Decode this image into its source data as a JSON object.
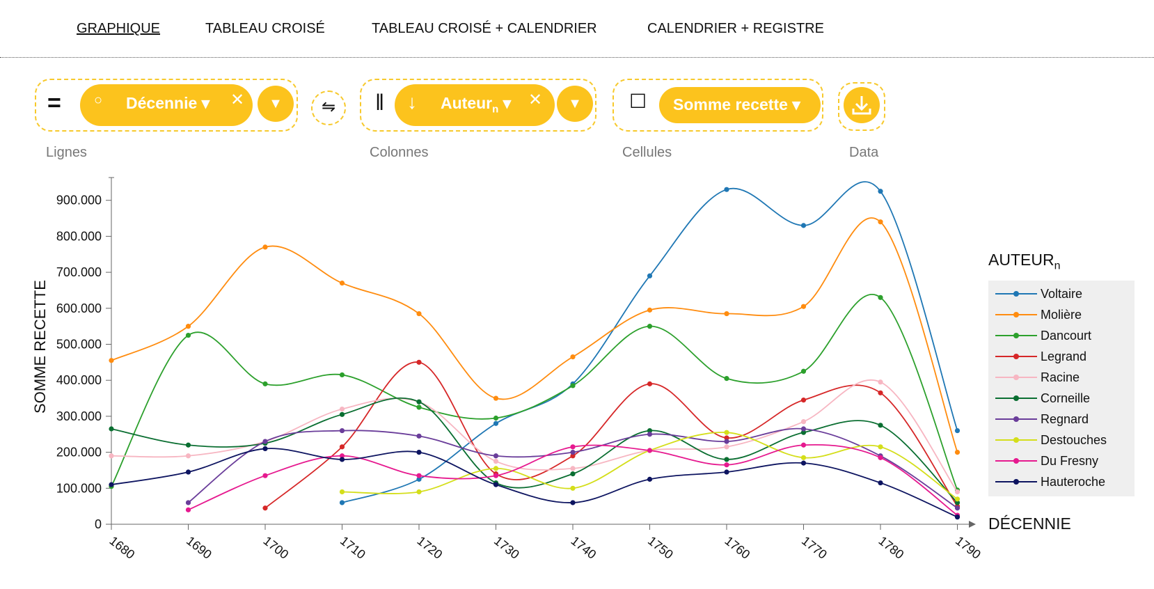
{
  "nav": {
    "tabs": [
      {
        "label": "GRAPHIQUE",
        "active": true
      },
      {
        "label": "TABLEAU CROISÉ",
        "active": false
      },
      {
        "label": "TABLEAU CROISÉ + CALENDRIER",
        "active": false
      },
      {
        "label": "CALENDRIER + REGISTRE",
        "active": false
      }
    ]
  },
  "controls": {
    "rows": {
      "label": "Lignes",
      "pill": "Décennie ▾"
    },
    "columns": {
      "label": "Colonnes",
      "pill": "Auteur",
      "pill_sub": "n",
      "pill_suffix": " ▾"
    },
    "cells": {
      "label": "Cellules",
      "pill": "Somme recette ▾"
    },
    "data": {
      "label": "Data"
    },
    "icons": {
      "rows_layout": "equals-icon",
      "rows_sort": "circle-icon",
      "swap": "swap-arrows-icon",
      "columns_layout": "vertical-bars-icon",
      "columns_sort": "arrow-down-icon",
      "cells_layout": "square-icon",
      "remove": "close-icon",
      "dropdown": "caret-down-icon",
      "download": "download-icon"
    },
    "accent": "#fcc31d"
  },
  "chart_data": {
    "type": "line",
    "xlabel": "DÉCENNIE",
    "ylabel": "SOMME RECETTE",
    "legend_title": "AUTEUR",
    "legend_title_sub": "n",
    "legend_position": "right",
    "grid": false,
    "x": [
      1680,
      1690,
      1700,
      1710,
      1720,
      1730,
      1740,
      1750,
      1760,
      1770,
      1780,
      1790
    ],
    "ylim": [
      0,
      960000
    ],
    "yticks": [
      0,
      100000,
      200000,
      300000,
      400000,
      500000,
      600000,
      700000,
      800000,
      900000
    ],
    "ytick_labels": [
      "0",
      "100.000",
      "200.000",
      "300.000",
      "400.000",
      "500.000",
      "600.000",
      "700.000",
      "800.000",
      "900.000"
    ],
    "series": [
      {
        "name": "Voltaire",
        "color": "#1f77b4",
        "values": [
          null,
          null,
          null,
          60000,
          125000,
          280000,
          390000,
          690000,
          930000,
          830000,
          925000,
          260000
        ]
      },
      {
        "name": "Molière",
        "color": "#ff8c0f",
        "values": [
          455000,
          550000,
          770000,
          670000,
          585000,
          350000,
          465000,
          595000,
          585000,
          605000,
          840000,
          200000
        ]
      },
      {
        "name": "Dancourt",
        "color": "#2ca02c",
        "values": [
          105000,
          525000,
          390000,
          415000,
          325000,
          295000,
          385000,
          550000,
          405000,
          425000,
          630000,
          95000
        ]
      },
      {
        "name": "Legrand",
        "color": "#d62728",
        "values": [
          null,
          null,
          45000,
          215000,
          450000,
          140000,
          190000,
          390000,
          240000,
          345000,
          365000,
          50000
        ]
      },
      {
        "name": "Racine",
        "color": "#f7b6c2",
        "values": [
          190000,
          190000,
          230000,
          320000,
          340000,
          175000,
          155000,
          205000,
          215000,
          285000,
          395000,
          90000
        ]
      },
      {
        "name": "Corneille",
        "color": "#0a6e31",
        "values": [
          265000,
          220000,
          225000,
          305000,
          340000,
          115000,
          140000,
          260000,
          180000,
          255000,
          275000,
          60000
        ]
      },
      {
        "name": "Regnard",
        "color": "#6a3d9a",
        "values": [
          null,
          60000,
          230000,
          260000,
          245000,
          190000,
          200000,
          250000,
          230000,
          265000,
          190000,
          45000
        ]
      },
      {
        "name": "Destouches",
        "color": "#d4de1a",
        "values": [
          null,
          null,
          null,
          90000,
          90000,
          155000,
          100000,
          205000,
          255000,
          185000,
          215000,
          70000
        ]
      },
      {
        "name": "Du Fresny",
        "color": "#e6198f",
        "values": [
          null,
          40000,
          135000,
          190000,
          135000,
          135000,
          215000,
          205000,
          165000,
          220000,
          185000,
          25000
        ]
      },
      {
        "name": "Hauteroche",
        "color": "#0d1460",
        "values": [
          110000,
          145000,
          210000,
          180000,
          200000,
          110000,
          60000,
          125000,
          145000,
          170000,
          115000,
          20000
        ]
      }
    ]
  }
}
